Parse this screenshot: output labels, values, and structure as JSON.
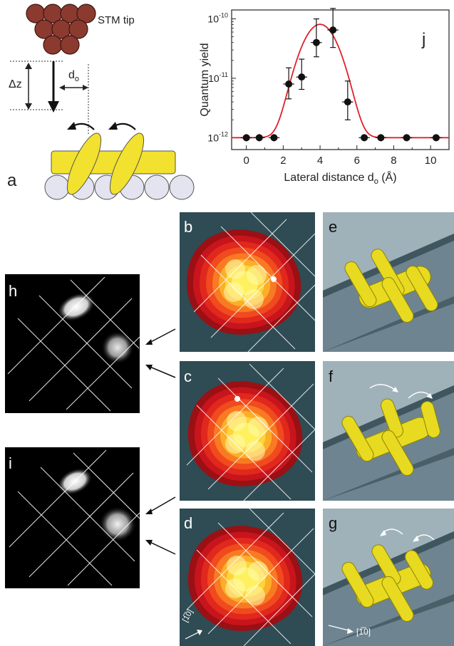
{
  "figure": {
    "panel_labels": {
      "a": "a",
      "b": "b",
      "c": "c",
      "d": "d",
      "e": "e",
      "f": "f",
      "g": "g",
      "h": "h",
      "i": "i",
      "j": "j"
    },
    "schematic": {
      "tip_label": "STM tip",
      "dz_label": "Δz",
      "d0_label": "d",
      "d0_sub": "o"
    },
    "direction_label": "[1̅0]",
    "colors": {
      "tip": "#8b3a30",
      "molecule": "#f2e12e",
      "substrate_atom": "#e4e4f0",
      "fit_curve": "#e0202a",
      "stm_dark": "#2f4b54",
      "stm_red": "#c8141c",
      "stm_yellow": "#fff060"
    }
  },
  "chart_data": {
    "type": "scatter",
    "title": "",
    "xlabel": "Lateral distance d",
    "xlabel_sub": "o",
    "xlabel_unit": " (Å)",
    "ylabel": "Quantum yield",
    "xlim": [
      -0.8,
      11
    ],
    "ylim_log10": [
      -12.2,
      -9.85
    ],
    "yscale": "log",
    "xticks": [
      0,
      2,
      4,
      6,
      8,
      10
    ],
    "yticks": [
      {
        "exp": -12,
        "label": "10",
        "sup": "-12"
      },
      {
        "exp": -11,
        "label": "10",
        "sup": "-11"
      },
      {
        "exp": -10,
        "label": "10",
        "sup": "-10"
      }
    ],
    "points": [
      {
        "x": 0.0,
        "y": 1e-12,
        "xerr": 0.3,
        "yerr": [
          0,
          0
        ]
      },
      {
        "x": 0.7,
        "y": 1e-12,
        "xerr": 0.3,
        "yerr": [
          0,
          0
        ]
      },
      {
        "x": 1.5,
        "y": 1e-12,
        "xerr": 0.3,
        "yerr": [
          0,
          0
        ]
      },
      {
        "x": 2.3,
        "y": 8e-12,
        "xerr": 0.3,
        "yerr": [
          4.5e-12,
          1.5e-11
        ]
      },
      {
        "x": 3.0,
        "y": 1.05e-11,
        "xerr": 0.3,
        "yerr": [
          6.5e-12,
          2.1e-11
        ]
      },
      {
        "x": 3.8,
        "y": 4e-11,
        "xerr": 0.3,
        "yerr": [
          2.3e-11,
          1e-10
        ]
      },
      {
        "x": 4.7,
        "y": 6.5e-11,
        "xerr": 0.3,
        "yerr": [
          3.3e-11,
          1.5e-10
        ]
      },
      {
        "x": 5.5,
        "y": 4e-12,
        "xerr": 0.3,
        "yerr": [
          2e-12,
          9e-12
        ]
      },
      {
        "x": 6.4,
        "y": 1e-12,
        "xerr": 0.3,
        "yerr": [
          0,
          0
        ]
      },
      {
        "x": 7.3,
        "y": 1e-12,
        "xerr": 0.3,
        "yerr": [
          0,
          0
        ]
      },
      {
        "x": 8.7,
        "y": 1e-12,
        "xerr": 0.3,
        "yerr": [
          0,
          0
        ]
      },
      {
        "x": 10.3,
        "y": 1e-12,
        "xerr": 0.3,
        "yerr": [
          0,
          0
        ]
      }
    ],
    "fit": {
      "model": "gaussian_log",
      "baseline": 1e-12,
      "peak": 8e-11,
      "center": 4.0,
      "sigma": 0.75
    },
    "grid": false,
    "legend": "none"
  }
}
